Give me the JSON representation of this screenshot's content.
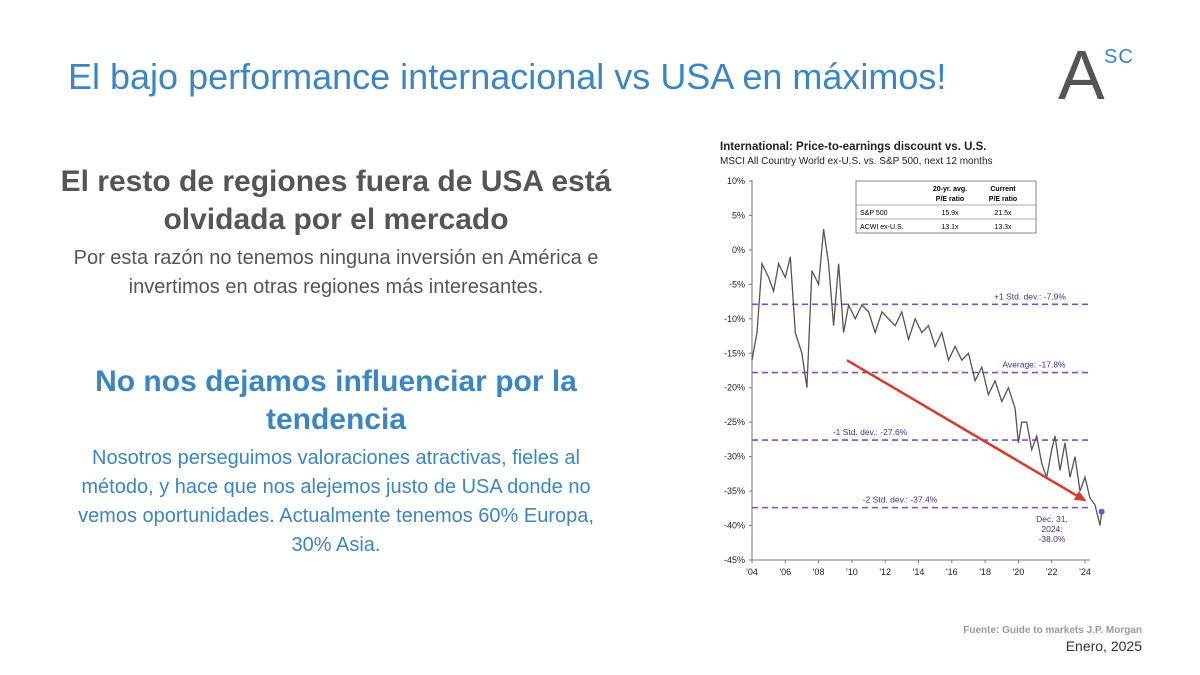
{
  "slide": {
    "title": "El bajo performance internacional vs USA en máximos!",
    "logo_main": "A",
    "logo_sup": "SC",
    "heading1": "El resto de regiones fuera de USA está olvidada por el mercado",
    "text1": "Por esta razón no tenemos ninguna inversión en América e invertimos en otras regiones más interesantes.",
    "heading2": "No nos dejamos influenciar por la tendencia",
    "text2": "Nosotros perseguimos valoraciones atractivas, fieles al método, y hace que nos alejemos justo de USA donde no vemos oportunidades. Actualmente tenemos 60% Europa, 30% Asia.",
    "source": "Fuente: Guide to markets J.P. Morgan",
    "date": "Enero, 2025"
  },
  "colors": {
    "title": "#3a86c4",
    "text_dark": "#555555",
    "line": "#555555",
    "ref_lines": "#7b4fc9",
    "arrow": "#d63a2a"
  },
  "chart_data": {
    "type": "line",
    "title": "International: Price-to-earnings discount vs. U.S.",
    "subtitle": "MSCI All Country World ex-U.S. vs. S&P 500, next 12 months",
    "x_tick_labels": [
      "'04",
      "'06",
      "'08",
      "'10",
      "'12",
      "'14",
      "'16",
      "'18",
      "'20",
      "'22",
      "'24"
    ],
    "y_tick_labels": [
      "10%",
      "5%",
      "0%",
      "-5%",
      "-10%",
      "-15%",
      "-20%",
      "-25%",
      "-30%",
      "-35%",
      "-40%",
      "-45%"
    ],
    "ylim": [
      -45,
      10
    ],
    "xlim": [
      2004,
      2024
    ],
    "inset_table": {
      "headers": [
        "",
        "20-yr. avg.\nP/E ratio",
        "Current\nP/E ratio"
      ],
      "rows": [
        [
          "S&P 500",
          "15.9x",
          "21.5x"
        ],
        [
          "ACWI ex-U.S.",
          "13.1x",
          "13.3x"
        ]
      ]
    },
    "reference_lines": [
      {
        "label": "+1 Std. dev.: -7.9%",
        "value": -7.9
      },
      {
        "label": "Average: -17.8%",
        "value": -17.8
      },
      {
        "label": "-1 Std. dev.: -27.6%",
        "value": -27.6
      },
      {
        "label": "-2 Std. dev.: -37.4%",
        "value": -37.4
      }
    ],
    "end_label_lines": [
      "Dec. 31,",
      "2024:",
      "-38.0%"
    ],
    "series": [
      {
        "x": [
          2004.0,
          2004.3,
          2004.6,
          2005.0,
          2005.3,
          2005.6,
          2006.0,
          2006.3,
          2006.6,
          2007.0,
          2007.3,
          2007.6,
          2008.0,
          2008.3,
          2008.6,
          2008.9,
          2009.2,
          2009.5,
          2009.8,
          2010.2,
          2010.6,
          2011.0,
          2011.4,
          2011.8,
          2012.2,
          2012.6,
          2013.0,
          2013.4,
          2013.8,
          2014.2,
          2014.6,
          2015.0,
          2015.4,
          2015.8,
          2016.2,
          2016.6,
          2017.0,
          2017.4,
          2017.8,
          2018.2,
          2018.6,
          2019.0,
          2019.4,
          2019.8,
          2020.0,
          2020.2,
          2020.5,
          2020.8,
          2021.1,
          2021.4,
          2021.7,
          2022.0,
          2022.2,
          2022.5,
          2022.8,
          2023.1,
          2023.4,
          2023.7,
          2024.0,
          2024.3,
          2024.6,
          2024.9,
          2025.0
        ],
        "y": [
          -16,
          -12,
          -2,
          -4,
          -6,
          -2,
          -4,
          -1,
          -12,
          -15,
          -20,
          -3,
          -5,
          3,
          -2,
          -11,
          -2,
          -12,
          -8,
          -10,
          -8,
          -9,
          -12,
          -9,
          -10,
          -11,
          -9,
          -13,
          -10,
          -12,
          -11,
          -14,
          -12,
          -16,
          -14,
          -16,
          -15,
          -19,
          -17,
          -21,
          -19,
          -22,
          -20,
          -23,
          -28,
          -25,
          -25,
          -29,
          -27,
          -31,
          -33,
          -29,
          -27,
          -32,
          -28,
          -33,
          -30,
          -35,
          -33,
          -36,
          -37,
          -40,
          -38
        ]
      }
    ],
    "arrow": {
      "from": [
        2009.7,
        -16
      ],
      "to": [
        2024.1,
        -36.5
      ]
    },
    "grid": false,
    "legend": "none"
  }
}
